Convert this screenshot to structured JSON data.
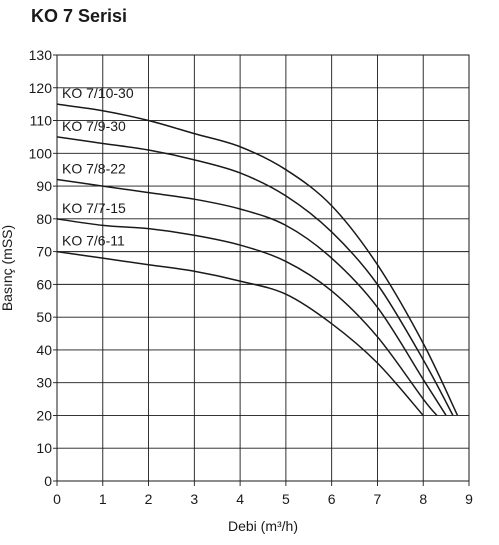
{
  "chart_data": {
    "type": "line",
    "title": "KO 7 Serisi",
    "xlabel": "Debi (m³/h)",
    "ylabel": "Basınç (mSS)",
    "xlim": [
      0,
      9
    ],
    "ylim": [
      0,
      130
    ],
    "x_ticks": [
      "0",
      "1",
      "2",
      "3",
      "4",
      "5",
      "6",
      "7",
      "8",
      "9"
    ],
    "y_ticks": [
      "0",
      "10",
      "20",
      "30",
      "40",
      "50",
      "60",
      "70",
      "80",
      "90",
      "100",
      "110",
      "120",
      "130"
    ],
    "grid": true,
    "series": [
      {
        "name": "KO 7/10-30",
        "points": [
          [
            0,
            115
          ],
          [
            1,
            113
          ],
          [
            2,
            110
          ],
          [
            3,
            106
          ],
          [
            4,
            102
          ],
          [
            5,
            95
          ],
          [
            6,
            84
          ],
          [
            7,
            66
          ],
          [
            8,
            42
          ],
          [
            8.75,
            20
          ]
        ]
      },
      {
        "name": "KO 7/9-30",
        "points": [
          [
            0,
            105
          ],
          [
            1,
            103
          ],
          [
            2,
            101
          ],
          [
            3,
            98
          ],
          [
            4,
            94
          ],
          [
            5,
            87
          ],
          [
            6,
            76
          ],
          [
            7,
            60
          ],
          [
            8,
            37
          ],
          [
            8.65,
            20
          ]
        ]
      },
      {
        "name": "KO 7/8-22",
        "points": [
          [
            0,
            92
          ],
          [
            1,
            90
          ],
          [
            2,
            88
          ],
          [
            3,
            86
          ],
          [
            4,
            83
          ],
          [
            5,
            78
          ],
          [
            6,
            68
          ],
          [
            7,
            53
          ],
          [
            8,
            31
          ],
          [
            8.5,
            20
          ]
        ]
      },
      {
        "name": "KO 7/7-15",
        "points": [
          [
            0,
            80
          ],
          [
            1,
            78
          ],
          [
            2,
            77
          ],
          [
            3,
            75
          ],
          [
            4,
            72
          ],
          [
            5,
            67
          ],
          [
            6,
            58
          ],
          [
            7,
            44
          ],
          [
            8,
            25
          ],
          [
            8.3,
            20
          ]
        ]
      },
      {
        "name": "KO 7/6-11",
        "points": [
          [
            0,
            70
          ],
          [
            1,
            68
          ],
          [
            2,
            66
          ],
          [
            3,
            64
          ],
          [
            4,
            61
          ],
          [
            5,
            57
          ],
          [
            6,
            48
          ],
          [
            7,
            36
          ],
          [
            8,
            20
          ]
        ]
      }
    ]
  }
}
